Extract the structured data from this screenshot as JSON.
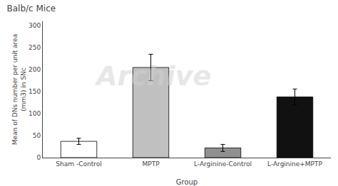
{
  "chart_data": {
    "type": "bar",
    "title": "Balb/c Mice",
    "categories": [
      "Sham -Control",
      "MPTP",
      "L-Arginine-Control",
      "L-Arginine+MPTP"
    ],
    "values": [
      37,
      205,
      22,
      138
    ],
    "errors": [
      7,
      30,
      8,
      18
    ],
    "colors": [
      "#ffffff",
      "#c0c0c0",
      "#909090",
      "#111111"
    ],
    "ylabel": "Mean of DNs number per unit area\n(mm3) in SNc",
    "xlabel": "Group",
    "ylim": [
      0,
      310
    ],
    "yticks": [
      0,
      50,
      100,
      150,
      200,
      250,
      300
    ],
    "grid": false,
    "annotations": [
      "Archive"
    ]
  }
}
